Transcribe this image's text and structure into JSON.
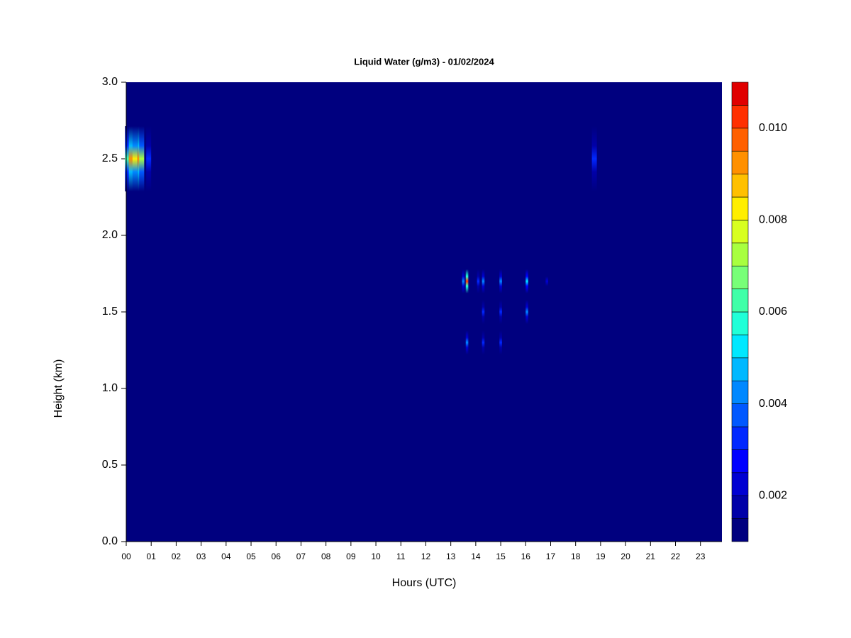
{
  "chart_data": {
    "type": "heatmap",
    "title": "Liquid Water (g/m3) - 01/02/2024",
    "x_label": "Hours (UTC)",
    "y_label": "Height (km)",
    "xlim": [
      0,
      23.86
    ],
    "xticks": [
      {
        "value": 0,
        "label": "00"
      },
      {
        "value": 1,
        "label": "01"
      },
      {
        "value": 2,
        "label": "02"
      },
      {
        "value": 3,
        "label": "03"
      },
      {
        "value": 4,
        "label": "04"
      },
      {
        "value": 5,
        "label": "05"
      },
      {
        "value": 6,
        "label": "06"
      },
      {
        "value": 7,
        "label": "07"
      },
      {
        "value": 8,
        "label": "08"
      },
      {
        "value": 9,
        "label": "09"
      },
      {
        "value": 10,
        "label": "10"
      },
      {
        "value": 11,
        "label": "11"
      },
      {
        "value": 12,
        "label": "12"
      },
      {
        "value": 13,
        "label": "13"
      },
      {
        "value": 14,
        "label": "14"
      },
      {
        "value": 15,
        "label": "15"
      },
      {
        "value": 16,
        "label": "16"
      },
      {
        "value": 17,
        "label": "17"
      },
      {
        "value": 18,
        "label": "18"
      },
      {
        "value": 19,
        "label": "19"
      },
      {
        "value": 20,
        "label": "20"
      },
      {
        "value": 21,
        "label": "21"
      },
      {
        "value": 22,
        "label": "22"
      },
      {
        "value": 23,
        "label": "23"
      }
    ],
    "ylim": [
      0,
      3
    ],
    "yticks": [
      {
        "value": 0,
        "label": "0.0"
      },
      {
        "value": 0.5,
        "label": "0.5"
      },
      {
        "value": 1,
        "label": "1.0"
      },
      {
        "value": 1.5,
        "label": "1.5"
      },
      {
        "value": 2,
        "label": "2.0"
      },
      {
        "value": 2.5,
        "label": "2.5"
      },
      {
        "value": 3,
        "label": "3.0"
      }
    ],
    "levels": [
      0.001,
      0.0015,
      0.002,
      0.0025,
      0.003,
      0.0035,
      0.004,
      0.0045,
      0.005,
      0.0055,
      0.006,
      0.0065,
      0.007,
      0.0075,
      0.008,
      0.0085,
      0.009,
      0.0095,
      0.01,
      0.0105,
      0.011
    ],
    "colors": [
      "#00007f",
      "#0000a8",
      "#0000d2",
      "#0000ff",
      "#0028ff",
      "#0058ff",
      "#0088ff",
      "#00b8ff",
      "#00e8ff",
      "#20ffd8",
      "#40ffa8",
      "#78ff78",
      "#a8ff40",
      "#d8ff20",
      "#ffee00",
      "#ffc000",
      "#ff9000",
      "#ff6000",
      "#ff3000",
      "#e00000"
    ],
    "colorbar_ticks": [
      0.002,
      0.004,
      0.006,
      0.008,
      {
        "value": 0.01,
        "label": "0.010"
      }
    ],
    "cells": {
      "x": [
        0.05,
        0.2,
        0.35,
        0.55,
        0.62,
        0.9,
        18.75,
        13.5,
        13.65,
        14.1,
        14.3,
        15.0,
        16.05,
        16.85,
        14.3,
        15.0,
        16.05,
        13.65,
        14.3,
        15.0
      ],
      "y": [
        2.5,
        2.5,
        2.5,
        2.5,
        2.5,
        2.5,
        2.5,
        1.7,
        1.7,
        1.7,
        1.7,
        1.7,
        1.7,
        1.7,
        1.5,
        1.5,
        1.5,
        1.3,
        1.3,
        1.3
      ],
      "values": [
        0.006,
        0.009,
        0.008,
        0.009,
        0.007,
        0.003,
        0.003,
        0.004,
        0.01,
        0.003,
        0.004,
        0.004,
        0.005,
        0.002,
        0.003,
        0.003,
        0.004,
        0.004,
        0.003,
        0.003
      ]
    }
  }
}
